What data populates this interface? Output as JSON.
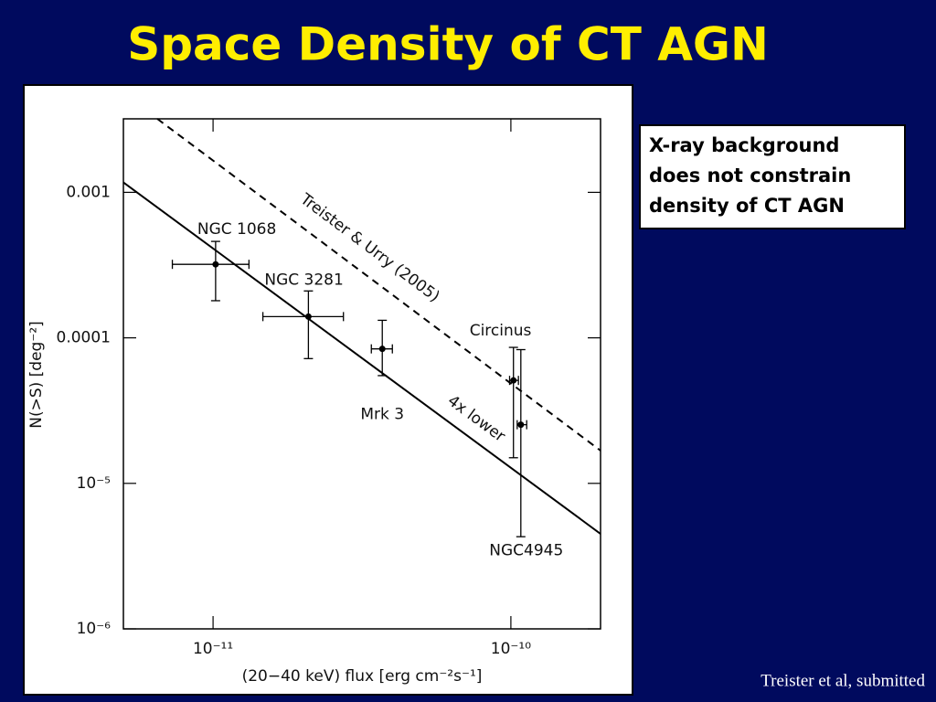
{
  "chart_data": {
    "type": "scatter",
    "title": "Space Density of CT AGN",
    "xlabel": "(20−40 keV) flux [erg cm⁻²s⁻¹]",
    "ylabel": "N(>S) [deg⁻²]",
    "log_x": true,
    "log_y": true,
    "xlim": [
      5e-12,
      2e-10
    ],
    "ylim": [
      1e-06,
      0.0032
    ],
    "xticks": [
      {
        "value": 1e-11,
        "label": "10⁻¹¹"
      },
      {
        "value": 1e-10,
        "label": "10⁻¹⁰"
      }
    ],
    "yticks": [
      {
        "value": 1e-06,
        "label": "10⁻⁶"
      },
      {
        "value": 1e-05,
        "label": "10⁻⁵"
      },
      {
        "value": 0.0001,
        "label": "0.0001"
      },
      {
        "value": 0.001,
        "label": "0.001"
      }
    ],
    "color": "#000000",
    "points": [
      {
        "name": "NGC 1068",
        "x": 1.02e-11,
        "y": 0.00032,
        "x_low": 7.3e-12,
        "x_high": 1.32e-11,
        "y_low": 0.00018,
        "y_high": 0.00046
      },
      {
        "name": "NGC 3281",
        "x": 2.09e-11,
        "y": 0.00014,
        "x_low": 1.47e-11,
        "x_high": 2.74e-11,
        "y_low": 7.2e-05,
        "y_high": 0.00021
      },
      {
        "name": "Mrk 3",
        "x": 3.7e-11,
        "y": 8.4e-05,
        "x_low": 3.4e-11,
        "x_high": 4e-11,
        "y_low": 5.5e-05,
        "y_high": 0.000132
      },
      {
        "name": "Circinus",
        "x": 1.02e-10,
        "y": 5.1e-05,
        "x_low": 9.9e-11,
        "x_high": 1.06e-10,
        "y_low": 1.5e-05,
        "y_high": 8.6e-05
      },
      {
        "name": "NGC4945",
        "x": 1.08e-10,
        "y": 2.53e-05,
        "x_low": 1.05e-10,
        "x_high": 1.13e-10,
        "y_low": 4.3e-06,
        "y_high": 8.3e-05
      }
    ],
    "lines": [
      {
        "name": "Treister & Urry (2005)",
        "style": "dashed",
        "x": [
          6.5e-12,
          2e-10
        ],
        "y": [
          0.0032,
          1.68e-05
        ]
      },
      {
        "name": "4x lower",
        "style": "solid",
        "x": [
          5e-12,
          2e-10
        ],
        "y": [
          0.00117,
          4.5e-06
        ]
      }
    ]
  },
  "note": [
    "X-ray background",
    "does not constrain",
    "density of CT AGN"
  ],
  "footer": "Treister et al, submitted"
}
